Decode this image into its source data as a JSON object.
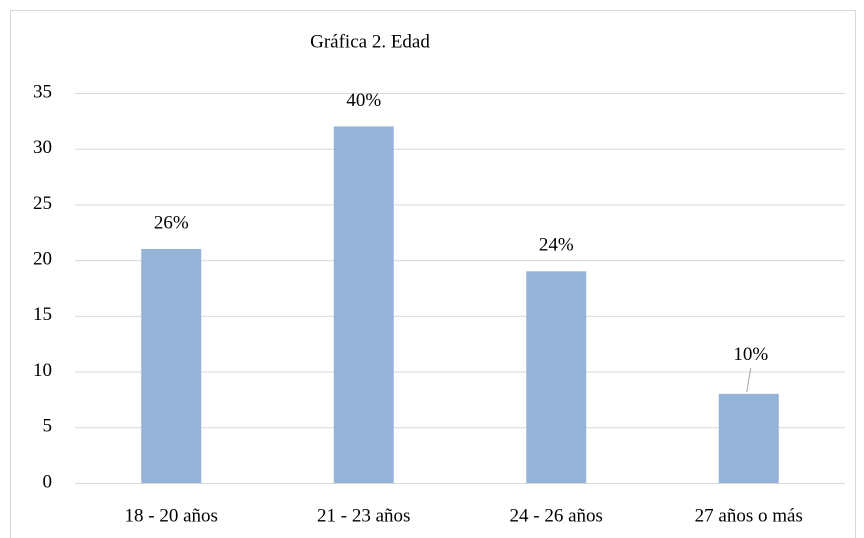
{
  "chart_data": {
    "type": "bar",
    "title": "Gráfica 2. Edad",
    "categories": [
      "18 - 20 años",
      "21 - 23 años",
      "24 - 26 años",
      "27 años o más"
    ],
    "values": [
      21,
      32,
      19,
      8
    ],
    "data_labels": [
      "26%",
      "40%",
      "24%",
      "10%"
    ],
    "color": "#95b3d7",
    "ylim": [
      0,
      35
    ],
    "yticks": [
      0,
      5,
      10,
      15,
      20,
      25,
      30,
      35
    ],
    "grid": true
  }
}
